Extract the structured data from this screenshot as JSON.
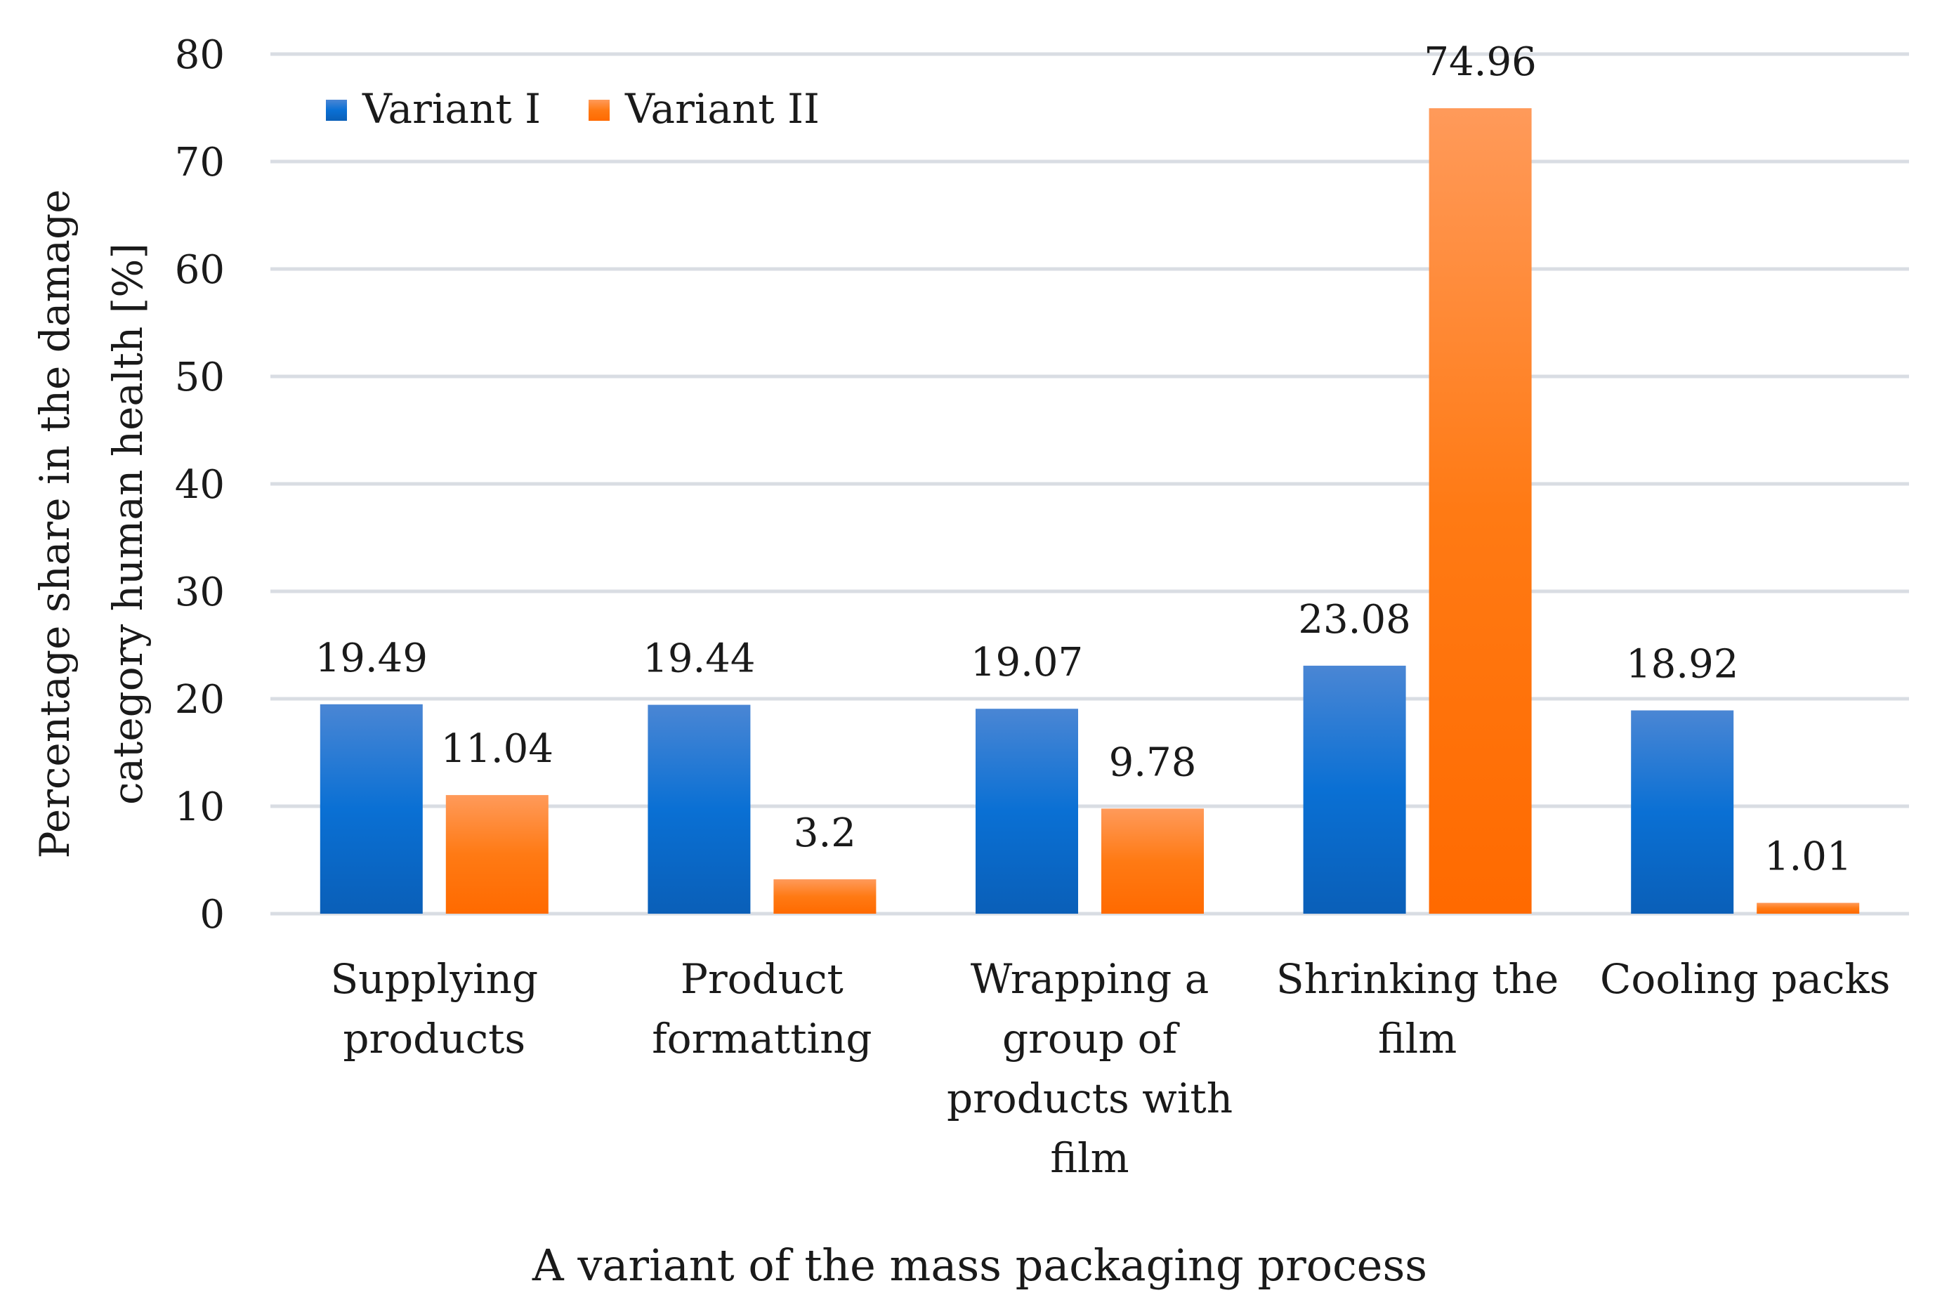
{
  "chart_data": {
    "type": "bar",
    "title": "",
    "categories": [
      [
        "Supplying",
        "products"
      ],
      [
        "Product",
        "formatting"
      ],
      [
        "Wrapping a",
        "group of",
        "products with",
        "film"
      ],
      [
        "Shrinking the",
        "film"
      ],
      [
        "Cooling packs"
      ]
    ],
    "series": [
      {
        "name": "Variant I",
        "values": [
          19.49,
          19.44,
          19.07,
          23.08,
          18.92
        ],
        "labels": [
          "19.49",
          "19.44",
          "19.07",
          "23.08",
          "18.92"
        ]
      },
      {
        "name": "Variant II",
        "values": [
          11.04,
          3.2,
          9.78,
          74.96,
          1.01
        ],
        "labels": [
          "11.04",
          "3.2",
          "9.78",
          "74.96",
          "1.01"
        ]
      }
    ],
    "xlabel": "A variant of the mass packaging process",
    "ylabel": [
      "Percentage share in the damage",
      "category human health [%]"
    ],
    "ylim": [
      0,
      80
    ],
    "yticks": [
      0,
      10,
      20,
      30,
      40,
      50,
      60,
      70,
      80
    ],
    "grid": true,
    "legend": "top-left",
    "colors": {
      "variant1_top": "#4a86d4",
      "variant1_mid": "#0a70d4",
      "variant1_bottom": "#0a5fb8",
      "variant2_top": "#ff9a5a",
      "variant2_mid": "#ff7a14",
      "variant2_bottom": "#ff6a00",
      "grid": "#d9dde3"
    }
  }
}
